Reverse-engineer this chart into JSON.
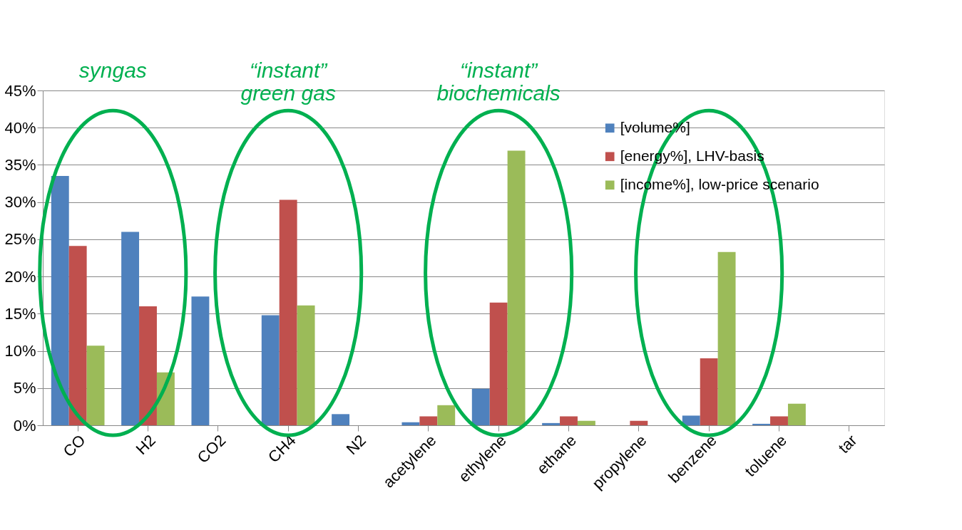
{
  "chart_data": {
    "type": "bar",
    "categories": [
      "CO",
      "H2",
      "CO2",
      "CH4",
      "N2",
      "acetylene",
      "ethylene",
      "ethane",
      "propylene",
      "benzene",
      "toluene",
      "tar"
    ],
    "series": [
      {
        "name": "[volume%]",
        "color": "#4f81bd",
        "values": [
          33.5,
          26.0,
          17.3,
          14.8,
          1.5,
          0.4,
          4.9,
          0.3,
          null,
          1.3,
          0.2,
          null
        ]
      },
      {
        "name": "[energy%], LHV-basis",
        "color": "#c0504d",
        "values": [
          24.1,
          16.0,
          null,
          30.3,
          null,
          1.2,
          16.5,
          1.2,
          0.6,
          9.0,
          1.2,
          null
        ]
      },
      {
        "name": "[income%], low-price scenario",
        "color": "#9bbb59",
        "values": [
          10.7,
          7.1,
          null,
          16.1,
          null,
          2.7,
          36.9,
          0.6,
          null,
          23.3,
          2.9,
          null
        ]
      }
    ],
    "ylim": [
      0,
      45
    ],
    "yticks": [
      {
        "value": 0,
        "label": "0%"
      },
      {
        "value": 5,
        "label": "5%"
      },
      {
        "value": 10,
        "label": "10%"
      },
      {
        "value": 15,
        "label": "15%"
      },
      {
        "value": 20,
        "label": "20%"
      },
      {
        "value": 25,
        "label": "25%"
      },
      {
        "value": 30,
        "label": "30%"
      },
      {
        "value": 35,
        "label": "35%"
      },
      {
        "value": 40,
        "label": "40%"
      },
      {
        "value": 45,
        "label": "45%"
      }
    ],
    "grid": "y",
    "legend": "top right",
    "annotations": [
      "syngas",
      "“instant”\ngreen gas",
      "“instant”\nbiochemicals"
    ]
  }
}
